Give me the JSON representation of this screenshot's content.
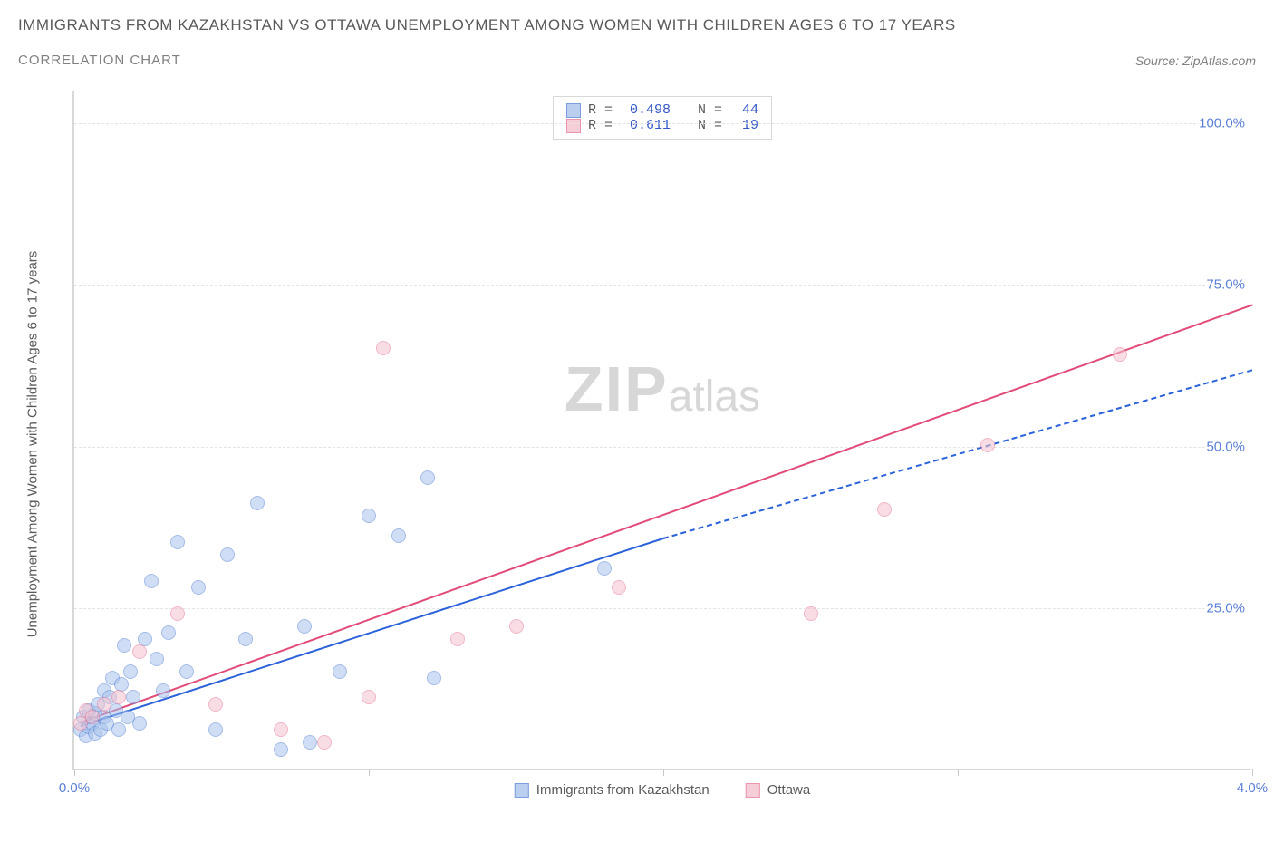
{
  "title": "IMMIGRANTS FROM KAZAKHSTAN VS OTTAWA UNEMPLOYMENT AMONG WOMEN WITH CHILDREN AGES 6 TO 17 YEARS",
  "subtitle": "CORRELATION CHART",
  "source_prefix": "Source: ",
  "source_name": "ZipAtlas.com",
  "watermark_bold": "ZIP",
  "watermark_light": "atlas",
  "y_axis_title": "Unemployment Among Women with Children Ages 6 to 17 years",
  "chart": {
    "type": "scatter",
    "background_color": "#ffffff",
    "grid_color": "#e4e4e4",
    "axis_color": "#d8d8d8",
    "tick_label_color": "#5b7fd6",
    "xlim": [
      0.0,
      4.0
    ],
    "ylim": [
      0.0,
      105.0
    ],
    "xticks": [
      0.0,
      1.0,
      2.0,
      3.0,
      4.0
    ],
    "xtick_labels": [
      "0.0%",
      "",
      "",
      "",
      "4.0%"
    ],
    "yticks": [
      25.0,
      50.0,
      75.0,
      100.0
    ],
    "ytick_labels": [
      "25.0%",
      "50.0%",
      "75.0%",
      "100.0%"
    ],
    "point_radius": 8,
    "series": [
      {
        "name": "Immigrants from Kazakhstan",
        "label": "Immigrants from Kazakhstan",
        "fill_color": "#a9c4ec",
        "fill_opacity": 0.55,
        "stroke_color": "#5b86d6",
        "R": "0.498",
        "N": "44",
        "trend": {
          "x1": 0.02,
          "y1": 7.0,
          "x2_solid": 2.0,
          "y2_solid": 36.0,
          "x2_dash": 4.0,
          "y2_dash": 62.0,
          "color": "#2b62d9"
        },
        "points": [
          [
            0.02,
            6
          ],
          [
            0.03,
            8
          ],
          [
            0.04,
            5
          ],
          [
            0.05,
            9
          ],
          [
            0.05,
            6.5
          ],
          [
            0.06,
            7
          ],
          [
            0.07,
            5.5
          ],
          [
            0.07,
            8.5
          ],
          [
            0.08,
            10
          ],
          [
            0.09,
            6
          ],
          [
            0.1,
            12
          ],
          [
            0.1,
            8
          ],
          [
            0.11,
            7
          ],
          [
            0.12,
            11
          ],
          [
            0.13,
            14
          ],
          [
            0.14,
            9
          ],
          [
            0.15,
            6
          ],
          [
            0.16,
            13
          ],
          [
            0.17,
            19
          ],
          [
            0.18,
            8
          ],
          [
            0.19,
            15
          ],
          [
            0.2,
            11
          ],
          [
            0.22,
            7
          ],
          [
            0.24,
            20
          ],
          [
            0.26,
            29
          ],
          [
            0.28,
            17
          ],
          [
            0.3,
            12
          ],
          [
            0.32,
            21
          ],
          [
            0.35,
            35
          ],
          [
            0.38,
            15
          ],
          [
            0.42,
            28
          ],
          [
            0.48,
            6
          ],
          [
            0.52,
            33
          ],
          [
            0.58,
            20
          ],
          [
            0.62,
            41
          ],
          [
            0.7,
            3
          ],
          [
            0.78,
            22
          ],
          [
            0.8,
            4
          ],
          [
            0.9,
            15
          ],
          [
            1.0,
            39
          ],
          [
            1.1,
            36
          ],
          [
            1.2,
            45
          ],
          [
            1.22,
            14
          ],
          [
            1.8,
            31
          ]
        ]
      },
      {
        "name": "Ottawa",
        "label": "Ottawa",
        "fill_color": "#f4c3cf",
        "fill_opacity": 0.55,
        "stroke_color": "#e77a9a",
        "R": "0.611",
        "N": "19",
        "trend": {
          "x1": 0.02,
          "y1": 7.5,
          "x2_solid": 4.0,
          "y2_solid": 72.0,
          "x2_dash": 4.0,
          "y2_dash": 72.0,
          "color": "#e24b78"
        },
        "points": [
          [
            0.02,
            7
          ],
          [
            0.04,
            9
          ],
          [
            0.06,
            8
          ],
          [
            0.1,
            10
          ],
          [
            0.15,
            11
          ],
          [
            0.22,
            18
          ],
          [
            0.35,
            24
          ],
          [
            0.48,
            10
          ],
          [
            0.7,
            6
          ],
          [
            0.85,
            4
          ],
          [
            1.0,
            11
          ],
          [
            1.05,
            65
          ],
          [
            1.3,
            20
          ],
          [
            1.5,
            22
          ],
          [
            1.85,
            28
          ],
          [
            2.5,
            24
          ],
          [
            2.75,
            40
          ],
          [
            3.1,
            50
          ],
          [
            3.55,
            64
          ]
        ]
      }
    ]
  },
  "legend_top": {
    "R_label": "R =",
    "N_label": "N ="
  }
}
